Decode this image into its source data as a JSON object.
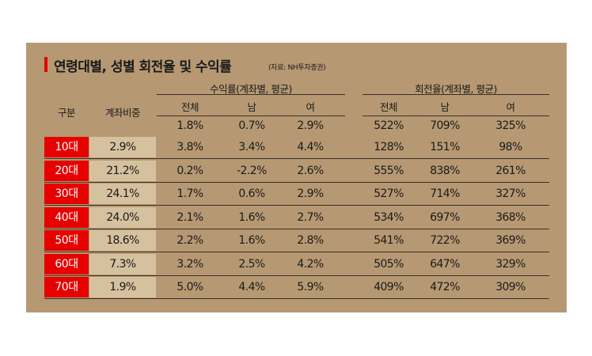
{
  "title": "연령대별, 성별 회전율 및 수익률",
  "source": "(자료: NH투자증권)",
  "header": {
    "group_label": "구분",
    "share_label": "계좌비중",
    "returns_label": "수익률(계좌별, 평균)",
    "turnover_label": "회전율(계좌별, 평균)",
    "sub": [
      "전체",
      "남",
      "여"
    ]
  },
  "overall": {
    "returns": [
      "1.8%",
      "0.7%",
      "2.9%"
    ],
    "turnover": [
      "522%",
      "709%",
      "325%"
    ]
  },
  "rows": [
    {
      "age": "10대",
      "share": "2.9%",
      "returns": [
        "3.8%",
        "3.4%",
        "4.4%"
      ],
      "turnover": [
        "128%",
        "151%",
        "98%"
      ]
    },
    {
      "age": "20대",
      "share": "21.2%",
      "returns": [
        "0.2%",
        "-2.2%",
        "2.6%"
      ],
      "turnover": [
        "555%",
        "838%",
        "261%"
      ]
    },
    {
      "age": "30대",
      "share": "24.1%",
      "returns": [
        "1.7%",
        "0.6%",
        "2.9%"
      ],
      "turnover": [
        "527%",
        "714%",
        "327%"
      ]
    },
    {
      "age": "40대",
      "share": "24.0%",
      "returns": [
        "2.1%",
        "1.6%",
        "2.7%"
      ],
      "turnover": [
        "534%",
        "697%",
        "368%"
      ]
    },
    {
      "age": "50대",
      "share": "18.6%",
      "returns": [
        "2.2%",
        "1.6%",
        "2.8%"
      ],
      "turnover": [
        "541%",
        "722%",
        "369%"
      ]
    },
    {
      "age": "60대",
      "share": "7.3%",
      "returns": [
        "3.2%",
        "2.5%",
        "4.2%"
      ],
      "turnover": [
        "505%",
        "647%",
        "329%"
      ]
    },
    {
      "age": "70대",
      "share": "1.9%",
      "returns": [
        "5.0%",
        "4.4%",
        "5.9%"
      ],
      "turnover": [
        "409%",
        "472%",
        "309%"
      ]
    }
  ],
  "chart_data": {
    "type": "table",
    "title": "연령대별, 성별 회전율 및 수익률",
    "columns": [
      "구분",
      "계좌비중",
      "수익률 전체",
      "수익률 남",
      "수익률 여",
      "회전율 전체",
      "회전율 남",
      "회전율 여"
    ],
    "rows": [
      [
        "",
        "",
        "1.8%",
        "0.7%",
        "2.9%",
        "522%",
        "709%",
        "325%"
      ],
      [
        "10대",
        "2.9%",
        "3.8%",
        "3.4%",
        "4.4%",
        "128%",
        "151%",
        "98%"
      ],
      [
        "20대",
        "21.2%",
        "0.2%",
        "-2.2%",
        "2.6%",
        "555%",
        "838%",
        "261%"
      ],
      [
        "30대",
        "24.1%",
        "1.7%",
        "0.6%",
        "2.9%",
        "527%",
        "714%",
        "327%"
      ],
      [
        "40대",
        "24.0%",
        "2.1%",
        "1.6%",
        "2.7%",
        "534%",
        "697%",
        "368%"
      ],
      [
        "50대",
        "18.6%",
        "2.2%",
        "1.6%",
        "2.8%",
        "541%",
        "722%",
        "369%"
      ],
      [
        "60대",
        "7.3%",
        "3.2%",
        "2.5%",
        "4.2%",
        "505%",
        "647%",
        "329%"
      ],
      [
        "70대",
        "1.9%",
        "5.0%",
        "4.4%",
        "5.9%",
        "409%",
        "472%",
        "309%"
      ]
    ]
  }
}
